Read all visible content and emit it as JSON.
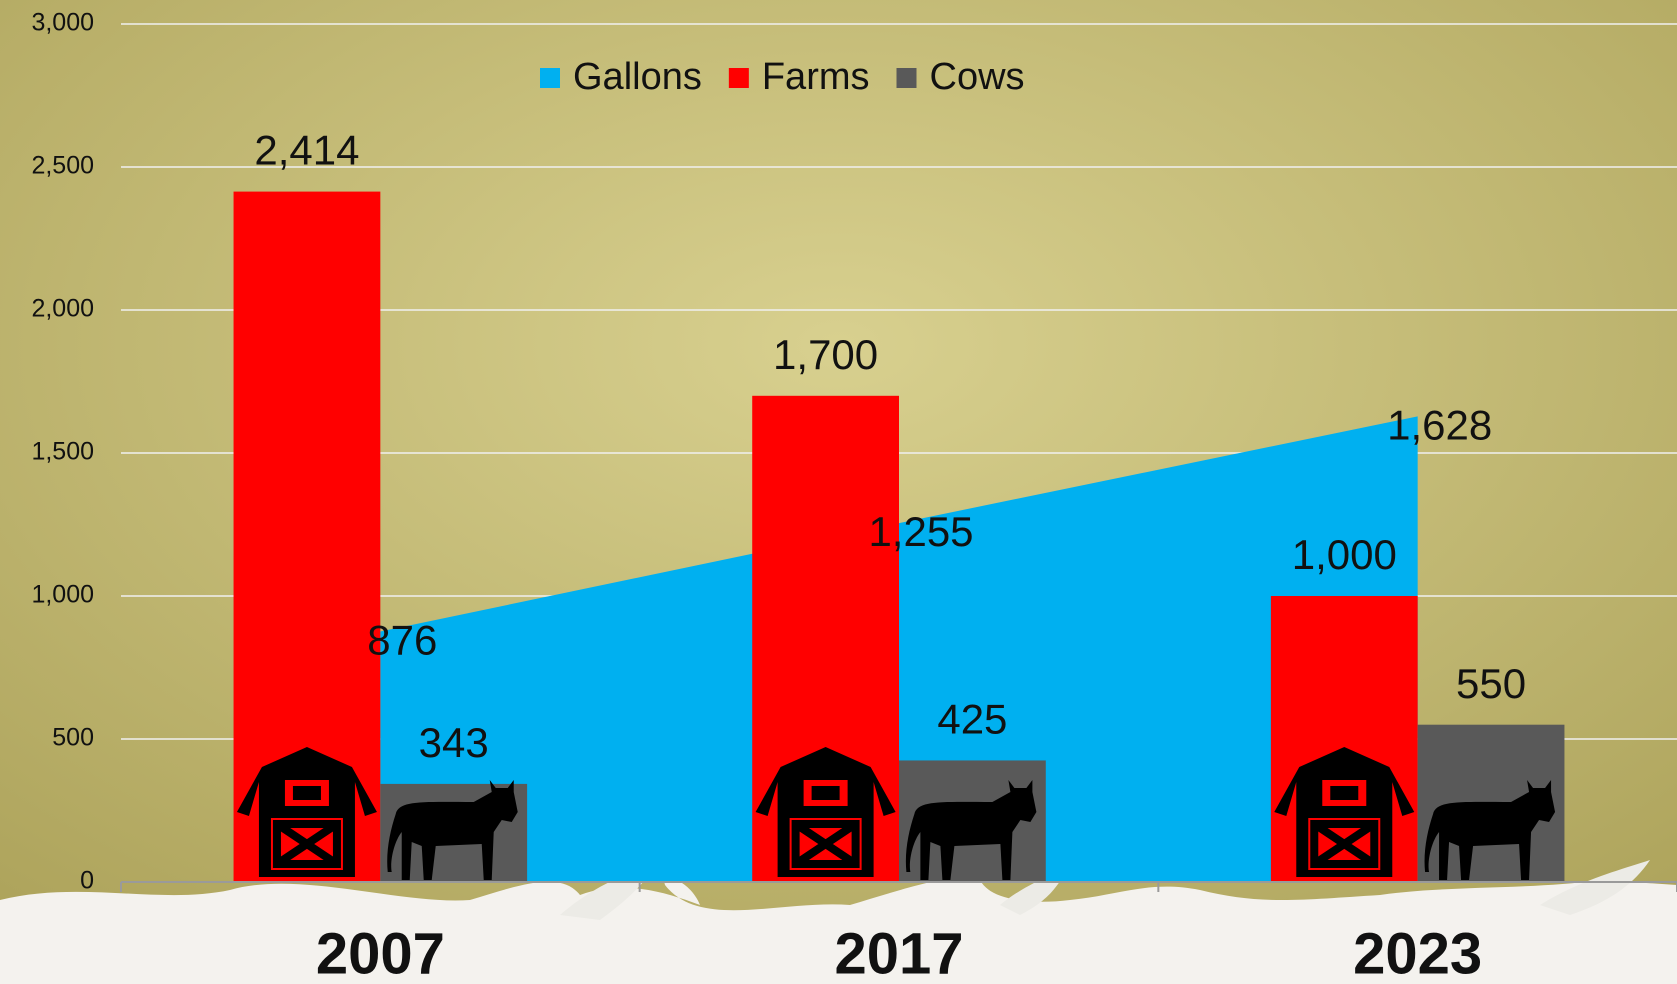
{
  "chart_data": {
    "type": "bar",
    "categories": [
      "2007",
      "2017",
      "2023"
    ],
    "series": [
      {
        "name": "Gallons",
        "type": "area",
        "color": "#00b0f0",
        "values": [
          876,
          1255,
          1628
        ],
        "value_labels": [
          "876",
          "1,255",
          "1,628"
        ]
      },
      {
        "name": "Farms",
        "type": "bar",
        "color": "#ff0000",
        "values": [
          2414,
          1700,
          1000
        ],
        "value_labels": [
          "2,414",
          "1,700",
          "1,000"
        ]
      },
      {
        "name": "Cows",
        "type": "bar",
        "color": "#595959",
        "values": [
          343,
          425,
          550
        ],
        "value_labels": [
          "343",
          "425",
          "550"
        ]
      }
    ],
    "ylim": [
      0,
      3000
    ],
    "yticks": [
      0,
      500,
      {
        "value": 1000,
        "label": "1,000"
      },
      {
        "value": 1500,
        "label": "1,500"
      },
      {
        "value": 2000,
        "label": "2,000"
      },
      {
        "value": 2500,
        "label": "2,500"
      },
      {
        "value": 3000,
        "label": "3,000"
      }
    ],
    "grid": true,
    "legend": "top"
  }
}
